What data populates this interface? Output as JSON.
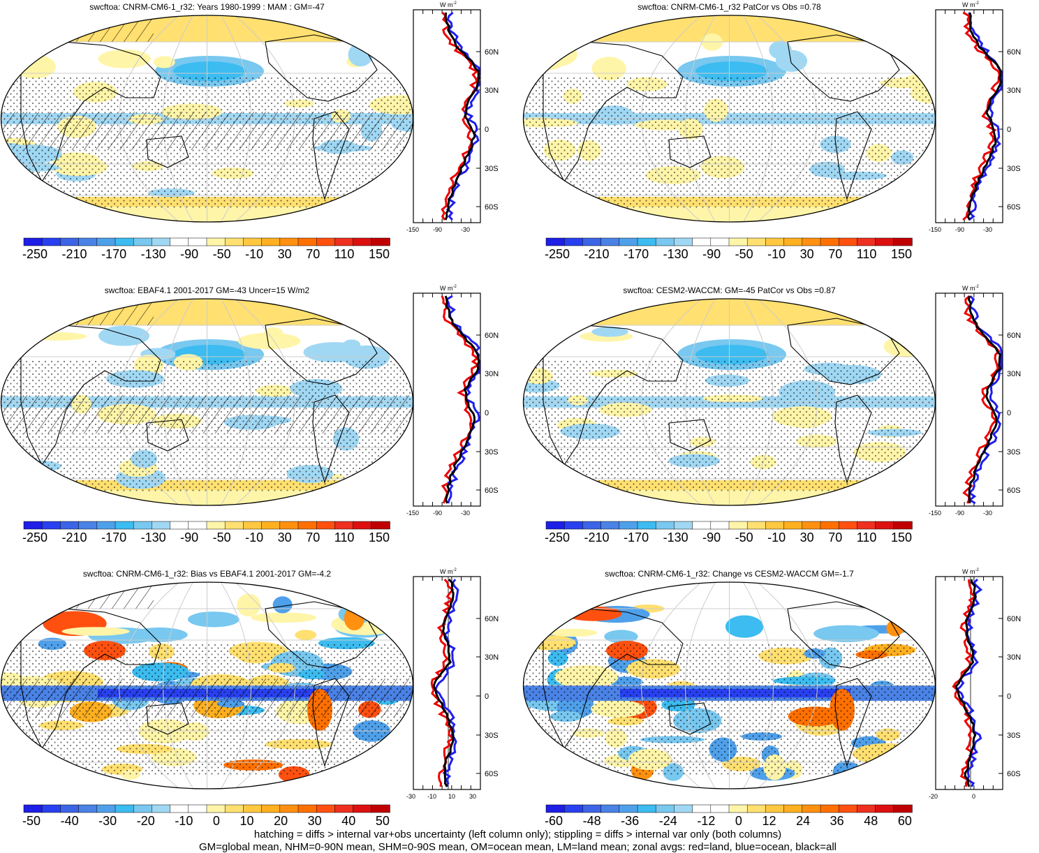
{
  "panels": [
    {
      "title": "swcftoa: CNRM-CM6-1_r32: Years 1980-1999 : MAM : GM=-47",
      "colorbar": [
        "-250",
        "-210",
        "-170",
        "-130",
        "-90",
        "-50",
        "-10",
        "30",
        "70",
        "110",
        "150"
      ],
      "zonal_ticks": [
        "-150",
        "-90",
        "-30"
      ],
      "hatching": true,
      "kind": "mean"
    },
    {
      "title": "swcftoa: CNRM-CM6-1_r32 PatCor vs Obs =0.78",
      "colorbar": [
        "-250",
        "-210",
        "-170",
        "-130",
        "-90",
        "-50",
        "-10",
        "30",
        "70",
        "110",
        "150"
      ],
      "zonal_ticks": [
        "-150",
        "-90",
        "-30"
      ],
      "hatching": false,
      "kind": "mean"
    },
    {
      "title": "swcftoa: EBAF4.1 2001-2017 GM=-43 Uncer=15 W/m2",
      "colorbar": [
        "-250",
        "-210",
        "-170",
        "-130",
        "-90",
        "-50",
        "-10",
        "30",
        "70",
        "110",
        "150"
      ],
      "zonal_ticks": [
        "-150",
        "-90",
        "-30"
      ],
      "hatching": true,
      "kind": "mean"
    },
    {
      "title": "swcftoa: CESM2-WACCM: GM=-45 PatCor vs Obs =0.87",
      "colorbar": [
        "-250",
        "-210",
        "-170",
        "-130",
        "-90",
        "-50",
        "-10",
        "30",
        "70",
        "110",
        "150"
      ],
      "zonal_ticks": [
        "-150",
        "-90",
        "-30"
      ],
      "hatching": false,
      "kind": "mean"
    },
    {
      "title": "swcftoa: CNRM-CM6-1_r32: Bias vs EBAF4.1 2001-2017 GM=-4.2",
      "colorbar": [
        "-50",
        "-40",
        "-30",
        "-20",
        "-10",
        "0",
        "10",
        "20",
        "30",
        "40",
        "50"
      ],
      "zonal_ticks": [
        "-30",
        "-10",
        "10",
        "30"
      ],
      "hatching": true,
      "kind": "diff"
    },
    {
      "title": "swcftoa: CNRM-CM6-1_r32: Change vs CESM2-WACCM GM=-1.7",
      "colorbar": [
        "-60",
        "-48",
        "-36",
        "-24",
        "-12",
        "0",
        "12",
        "24",
        "36",
        "48",
        "60"
      ],
      "zonal_ticks": [
        "-20",
        "0"
      ],
      "hatching": false,
      "kind": "diff"
    }
  ],
  "lat_labels": [
    "60N",
    "30N",
    "0",
    "30S",
    "60S"
  ],
  "zonal_unit": "W m",
  "zonal_unit_sup": "-2",
  "colorbar_colors": [
    "#1e1ee6",
    "#2840f0",
    "#3c64e6",
    "#4a82e6",
    "#4fa0ea",
    "#3cbcf0",
    "#78c8f0",
    "#a0d8f4",
    "#ffffff",
    "#ffffff",
    "#fff5a8",
    "#ffe070",
    "#ffc840",
    "#ffb020",
    "#ff9010",
    "#ff7000",
    "#ff5010",
    "#ee3020",
    "#dd1010",
    "#c00000"
  ],
  "legend_colors": {
    "land": "#ee0000",
    "ocean": "#1e1ef0",
    "all": "#000000"
  },
  "footer": [
    "hatching = diffs > internal var+obs uncertainty (left column only); stippling = diffs > internal var only (both columns)",
    "GM=global mean, NHM=0-90N mean, SHM=0-90S mean, OM=ocean mean, LM=land mean; zonal avgs: red=land, blue=ocean, black=all"
  ]
}
